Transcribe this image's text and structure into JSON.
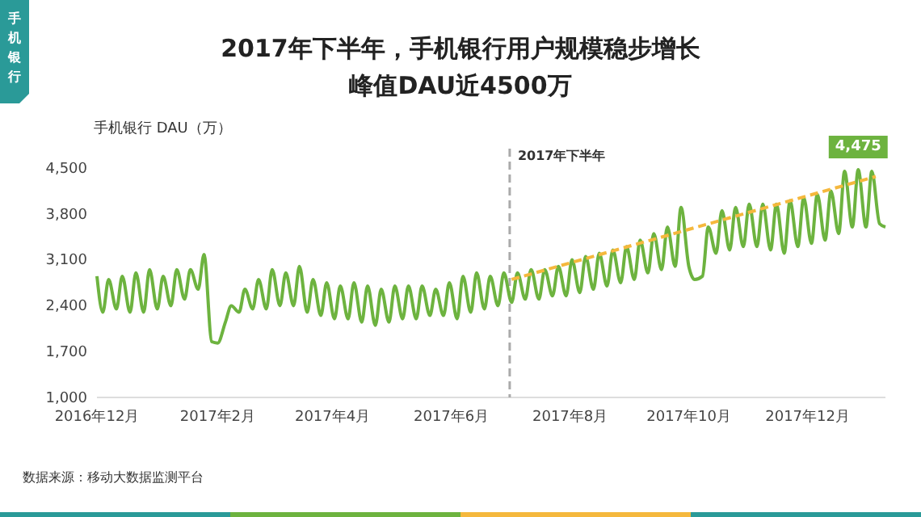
{
  "chart_data": {
    "type": "line",
    "title": "2017年下半年，手机银行用户规模稳步增长",
    "subtitle": "峰值DAU近4500万",
    "ylabel": "手机银行 DAU（万）",
    "annotations": [
      "手机银行",
      "数据来源：移动大数据监测平台",
      {
        "text": "4,475",
        "x": "2017-12-27",
        "y": 4475
      }
    ],
    "series": [
      {
        "color": "#6db33f",
        "x": [
          "2016-12-01",
          "2016-12-04",
          "2016-12-07",
          "2016-12-11",
          "2016-12-14",
          "2016-12-18",
          "2016-12-21",
          "2016-12-25",
          "2016-12-28",
          "2017-01-01",
          "2017-01-04",
          "2017-01-08",
          "2017-01-11",
          "2017-01-15",
          "2017-01-18",
          "2017-01-22",
          "2017-01-25",
          "2017-01-29",
          "2017-02-01",
          "2017-02-05",
          "2017-02-08",
          "2017-02-12",
          "2017-02-15",
          "2017-02-19",
          "2017-02-22",
          "2017-02-26",
          "2017-03-01",
          "2017-03-05",
          "2017-03-08",
          "2017-03-12",
          "2017-03-15",
          "2017-03-19",
          "2017-03-22",
          "2017-03-26",
          "2017-03-29",
          "2017-04-02",
          "2017-04-05",
          "2017-04-09",
          "2017-04-12",
          "2017-04-16",
          "2017-04-19",
          "2017-04-23",
          "2017-04-26",
          "2017-04-30",
          "2017-05-03",
          "2017-05-07",
          "2017-05-10",
          "2017-05-14",
          "2017-05-17",
          "2017-05-21",
          "2017-05-24",
          "2017-05-28",
          "2017-05-31",
          "2017-06-04",
          "2017-06-07",
          "2017-06-11",
          "2017-06-14",
          "2017-06-18",
          "2017-06-21",
          "2017-06-25",
          "2017-06-28",
          "2017-07-02",
          "2017-07-05",
          "2017-07-09",
          "2017-07-12",
          "2017-07-16",
          "2017-07-19",
          "2017-07-23",
          "2017-07-26",
          "2017-07-30",
          "2017-08-02",
          "2017-08-06",
          "2017-08-09",
          "2017-08-13",
          "2017-08-16",
          "2017-08-20",
          "2017-08-23",
          "2017-08-27",
          "2017-08-30",
          "2017-09-03",
          "2017-09-06",
          "2017-09-10",
          "2017-09-13",
          "2017-09-17",
          "2017-09-20",
          "2017-09-24",
          "2017-09-27",
          "2017-10-01",
          "2017-10-04",
          "2017-10-08",
          "2017-10-11",
          "2017-10-15",
          "2017-10-18",
          "2017-10-22",
          "2017-10-25",
          "2017-10-29",
          "2017-11-01",
          "2017-11-05",
          "2017-11-08",
          "2017-11-12",
          "2017-11-15",
          "2017-11-19",
          "2017-11-22",
          "2017-11-26",
          "2017-11-29",
          "2017-12-03",
          "2017-12-06",
          "2017-12-10",
          "2017-12-13",
          "2017-12-17",
          "2017-12-20",
          "2017-12-24",
          "2017-12-27",
          "2017-12-31",
          "2018-01-03",
          "2018-01-07",
          "2018-01-10"
        ],
        "values": [
          2850,
          2300,
          2800,
          2350,
          2850,
          2300,
          2900,
          2300,
          2950,
          2350,
          2850,
          2400,
          2950,
          2500,
          2950,
          2650,
          3180,
          1850,
          1830,
          2150,
          2400,
          2300,
          2650,
          2350,
          2800,
          2350,
          2950,
          2400,
          2900,
          2400,
          3000,
          2300,
          2800,
          2250,
          2750,
          2200,
          2700,
          2200,
          2750,
          2150,
          2700,
          2100,
          2650,
          2150,
          2700,
          2200,
          2700,
          2200,
          2700,
          2250,
          2650,
          2250,
          2750,
          2200,
          2850,
          2300,
          2900,
          2350,
          2850,
          2400,
          2900,
          2450,
          2900,
          2500,
          2950,
          2500,
          2950,
          2550,
          3000,
          2550,
          3100,
          2600,
          3150,
          2650,
          3200,
          2700,
          3250,
          2750,
          3300,
          2800,
          3400,
          2900,
          3500,
          2950,
          3600,
          3000,
          3900,
          3000,
          2800,
          2850,
          3600,
          3200,
          3850,
          3250,
          3900,
          3300,
          3950,
          3300,
          3950,
          3250,
          3950,
          3200,
          4000,
          3300,
          4050,
          3350,
          4100,
          3400,
          4150,
          3500,
          4450,
          3600,
          4475,
          3600,
          4450,
          3650,
          3600
        ]
      },
      {
        "color": "#f5b83d",
        "line_style": "dashed",
        "x": [
          "2017-07-02",
          "2018-01-05"
        ],
        "values": [
          2800,
          4370
        ]
      }
    ],
    "xlim": [
      "2016-12-01",
      "2018-01-10"
    ],
    "xticks": [
      {
        "value": "2016-12-01",
        "label": "2016年12月"
      },
      {
        "value": "2017-02-01",
        "label": "2017年2月"
      },
      {
        "value": "2017-04-01",
        "label": "2017年4月"
      },
      {
        "value": "2017-06-01",
        "label": "2017年6月"
      },
      {
        "value": "2017-08-01",
        "label": "2017年8月"
      },
      {
        "value": "2017-10-01",
        "label": "2017年10月"
      },
      {
        "value": "2017-12-01",
        "label": "2017年12月"
      }
    ],
    "ylim": [
      1000,
      4500
    ],
    "yticks": [
      {
        "value": 1000,
        "label": "1,000"
      },
      {
        "value": 1700,
        "label": "1,700"
      },
      {
        "value": 2400,
        "label": "2,400"
      },
      {
        "value": 3100,
        "label": "3,100"
      },
      {
        "value": 3800,
        "label": "3,800"
      },
      {
        "value": 4500,
        "label": "4,500"
      }
    ],
    "ref_lines": [
      {
        "axis": "x",
        "value": "2017-07-01",
        "label": "2017年下半年",
        "color": "#aaaaaa",
        "line_style": "dashed"
      }
    ],
    "grid": false,
    "marker": "none"
  }
}
